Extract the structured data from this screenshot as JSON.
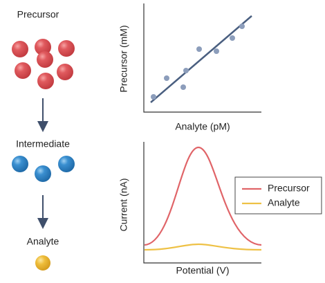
{
  "stages": [
    {
      "label": "Precursor"
    },
    {
      "label": "Intermediate"
    },
    {
      "label": "Analyte"
    }
  ],
  "plots": [
    {
      "y_label": "Precursor (mM)",
      "x_label": "Analyte (pM)"
    },
    {
      "y_label": "Current (nA)",
      "x_label": "Potential (V)",
      "legend": [
        "Precursor",
        "Analyte"
      ]
    }
  ]
}
